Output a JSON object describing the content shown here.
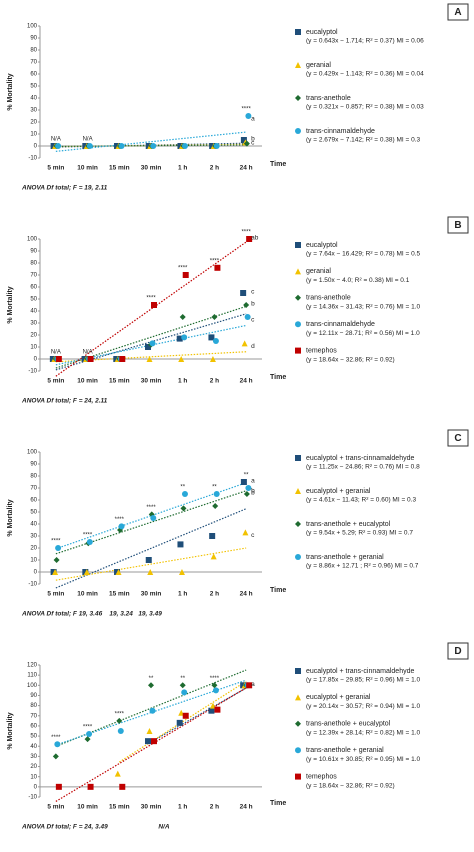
{
  "chart_data": [
    {
      "type": "scatter",
      "panel": "A",
      "ylabel": "% Mortality",
      "xlabel": "Time",
      "footnote": "ANOVA Df total; F = 19, 2.11",
      "categories": [
        "5 min",
        "10 min",
        "15 min",
        "30 min",
        "1 h",
        "2 h",
        "24 h"
      ],
      "ylim": [
        -10,
        100
      ],
      "yticks": [
        -10,
        0,
        10,
        20,
        30,
        40,
        50,
        60,
        70,
        80,
        90,
        100
      ],
      "series": [
        {
          "name": "eucalyptol",
          "equation": "(y = 0.643x − 1.714; R² = 0.37) MI = 0.06",
          "color": "#1f4e79",
          "marker": "square",
          "values": [
            0,
            0,
            0,
            0,
            0,
            0,
            5
          ],
          "point_labels": [
            null,
            null,
            null,
            null,
            null,
            null,
            "b"
          ]
        },
        {
          "name": "geranial",
          "equation": "(y = 0.429x − 1.143; R² = 0.36) MI = 0.04",
          "color": "#f2c200",
          "marker": "triangle",
          "values": [
            0,
            0,
            0,
            0,
            0,
            0,
            3
          ],
          "point_labels": [
            null,
            null,
            null,
            null,
            null,
            null,
            null
          ]
        },
        {
          "name": "trans-anethole",
          "equation": "(y = 0.321x − 0.857; R² = 0.38) MI = 0.03",
          "color": "#1e6b30",
          "marker": "diamond",
          "values": [
            0,
            0,
            0,
            0,
            0,
            0,
            2
          ],
          "point_labels": [
            null,
            null,
            null,
            null,
            null,
            null,
            "c"
          ]
        },
        {
          "name": "trans-cinnamaldehyde",
          "equation": "(y = 2.679x − 7.142; R² = 0.38) MI = 0.3",
          "color": "#29a8d8",
          "marker": "circle",
          "values": [
            0,
            0,
            0,
            0,
            0,
            0,
            25
          ],
          "point_labels": [
            null,
            null,
            null,
            null,
            null,
            null,
            "a"
          ]
        }
      ],
      "annotations": [
        {
          "at": "5 min",
          "text": "N/A"
        },
        {
          "at": "10 min",
          "text": "N/A"
        },
        {
          "at": "24 h",
          "text": "****"
        }
      ]
    },
    {
      "type": "scatter",
      "panel": "B",
      "ylabel": "% Mortality",
      "xlabel": "Time",
      "footnote": "ANOVA Df total; F = 24, 2.11",
      "categories": [
        "5 min",
        "10 min",
        "15 min",
        "30 min",
        "1 h",
        "2 h",
        "24 h"
      ],
      "ylim": [
        -10,
        100
      ],
      "yticks": [
        -10,
        0,
        10,
        20,
        30,
        40,
        50,
        60,
        70,
        80,
        90,
        100
      ],
      "series": [
        {
          "name": "eucalyptol",
          "equation": "(y = 7.64x − 16.429; R² = 0.78) MI = 0.5",
          "color": "#1f4e79",
          "marker": "square",
          "values": [
            0,
            0,
            0,
            10,
            17,
            18,
            55
          ],
          "point_labels": [
            null,
            null,
            null,
            null,
            null,
            null,
            "c"
          ]
        },
        {
          "name": "geranial",
          "equation": "(y = 1.50x − 4.0; R² = 0.38) MI = 0.1",
          "color": "#f2c200",
          "marker": "triangle",
          "values": [
            0,
            0,
            0,
            0,
            0,
            0,
            13
          ],
          "point_labels": [
            null,
            null,
            null,
            null,
            null,
            null,
            "d"
          ]
        },
        {
          "name": "trans-anethole",
          "equation": "(y = 14.36x − 31.43; R² = 0.76) MI = 1.0",
          "color": "#1e6b30",
          "marker": "diamond",
          "values": [
            0,
            0,
            0,
            12,
            35,
            35,
            45
          ],
          "point_labels": [
            null,
            null,
            null,
            null,
            null,
            null,
            "b"
          ]
        },
        {
          "name": "trans-cinnamaldehyde",
          "equation": "(y = 12.11x − 28.71; R² = 0.56) MI = 1.0",
          "color": "#29a8d8",
          "marker": "circle",
          "values": [
            0,
            0,
            0,
            13,
            18,
            15,
            35
          ],
          "point_labels": [
            null,
            null,
            null,
            null,
            null,
            null,
            "c"
          ]
        },
        {
          "name": "temephos",
          "equation": "(y = 18.64x − 32.86; R² = 0.92)",
          "color": "#c00000",
          "marker": "square",
          "values": [
            0,
            0,
            0,
            45,
            70,
            76,
            100
          ],
          "point_labels": [
            null,
            null,
            null,
            null,
            null,
            null,
            "ab"
          ]
        }
      ],
      "annotations": [
        {
          "at": "5 min",
          "text": "N/A"
        },
        {
          "at": "10 min",
          "text": "N/A"
        },
        {
          "at": "30 min",
          "text": "****"
        },
        {
          "at": "1 h",
          "text": "****"
        },
        {
          "at": "2 h",
          "text": "****"
        },
        {
          "at": "24 h",
          "text": "****"
        }
      ]
    },
    {
      "type": "scatter",
      "panel": "C",
      "ylabel": "% Mortality",
      "xlabel": "Time",
      "footnote": "ANOVA Df total; F 19, 3.46    19, 3.24   19, 3.49",
      "categories": [
        "5 min",
        "10 min",
        "15 min",
        "30 min",
        "1 h",
        "2 h",
        "24 h"
      ],
      "ylim": [
        -10,
        100
      ],
      "yticks": [
        -10,
        0,
        10,
        20,
        30,
        40,
        50,
        60,
        70,
        80,
        90,
        100
      ],
      "series": [
        {
          "name": "eucalyptol + trans-cinnamaldehyde",
          "equation": "(y = 11.25x − 24.86; R² = 0.76) MI = 0.8",
          "color": "#1f4e79",
          "marker": "square",
          "values": [
            0,
            0,
            0,
            10,
            23,
            30,
            75
          ],
          "point_labels": [
            null,
            null,
            null,
            null,
            null,
            null,
            "a"
          ]
        },
        {
          "name": "eucalyptol + geranial",
          "equation": "(y = 4.61x − 11.43; R² = 0.60) MI = 0.3",
          "color": "#f2c200",
          "marker": "triangle",
          "values": [
            0,
            0,
            0,
            0,
            0,
            13,
            33
          ],
          "point_labels": [
            null,
            null,
            null,
            null,
            null,
            null,
            "c"
          ]
        },
        {
          "name": "trans-anethole + eucalyptol",
          "equation": "(y = 9.54x + 5.29; R² = 0.93) MI = 0.7",
          "color": "#1e6b30",
          "marker": "diamond",
          "values": [
            10,
            24,
            35,
            48,
            53,
            55,
            65
          ],
          "point_labels": [
            null,
            null,
            null,
            null,
            null,
            null,
            "b"
          ]
        },
        {
          "name": "trans-anethole + geranial",
          "equation": "(y = 8.86x + 12.71 ; R² = 0.96) MI = 0.7",
          "color": "#29a8d8",
          "marker": "circle",
          "values": [
            20,
            25,
            38,
            45,
            65,
            65,
            70
          ],
          "point_labels": [
            null,
            null,
            null,
            null,
            null,
            null,
            "b"
          ]
        }
      ],
      "annotations": [
        {
          "at": "5 min",
          "text": "****"
        },
        {
          "at": "10 min",
          "text": "****"
        },
        {
          "at": "15 min",
          "text": "****"
        },
        {
          "at": "30 min",
          "text": "****"
        },
        {
          "at": "1 h",
          "text": "**"
        },
        {
          "at": "2 h",
          "text": "**"
        },
        {
          "at": "24 h",
          "text": "**"
        }
      ]
    },
    {
      "type": "scatter",
      "panel": "D",
      "ylabel": "% Mortality",
      "xlabel": "Time",
      "footnote": "ANOVA Df total; F = 24, 3.49                            N/A",
      "categories": [
        "5 min",
        "10 min",
        "15 min",
        "30 min",
        "1 h",
        "2 h",
        "24 h"
      ],
      "ylim": [
        -10,
        120
      ],
      "yticks": [
        -10,
        0,
        10,
        20,
        30,
        40,
        50,
        60,
        70,
        80,
        90,
        100,
        110,
        120
      ],
      "series": [
        {
          "name": "eucalyptol + trans-cinnamaldehyde",
          "equation": "(y = 17.85x − 29.85; R² = 0.96) MI = 1.0",
          "color": "#1f4e79",
          "marker": "square",
          "values": [
            null,
            null,
            null,
            45,
            63,
            75,
            100
          ],
          "point_labels": [
            null,
            null,
            null,
            null,
            null,
            null,
            null
          ]
        },
        {
          "name": "eucalyptol + geranial",
          "equation": "(y = 20.14x − 30.57; R² = 0.94) MI = 1.0",
          "color": "#f2c200",
          "marker": "triangle",
          "values": [
            null,
            null,
            13,
            55,
            73,
            80,
            100
          ],
          "point_labels": [
            null,
            null,
            null,
            null,
            null,
            null,
            null
          ]
        },
        {
          "name": "trans-anethole + eucalyptol",
          "equation": "(y = 12.39x + 28.14; R² = 0.82) MI = 1.0",
          "color": "#1e6b30",
          "marker": "diamond",
          "values": [
            30,
            47,
            65,
            100,
            100,
            100,
            100
          ],
          "point_labels": [
            null,
            null,
            null,
            null,
            null,
            null,
            null
          ]
        },
        {
          "name": "trans-anethole + geranial",
          "equation": "(y = 10.61x + 30.85; R² = 0.95) MI = 1.0",
          "color": "#29a8d8",
          "marker": "circle",
          "values": [
            42,
            52,
            55,
            75,
            93,
            95,
            100
          ],
          "point_labels": [
            null,
            null,
            null,
            null,
            null,
            null,
            null
          ]
        },
        {
          "name": "temephos",
          "equation": "(y = 18.64x − 32.86; R² = 0.92)",
          "color": "#c00000",
          "marker": "square",
          "values": [
            0,
            0,
            0,
            45,
            70,
            76,
            100
          ],
          "point_labels": [
            null,
            null,
            null,
            null,
            null,
            null,
            "a"
          ]
        }
      ],
      "annotations": [
        {
          "at": "5 min",
          "text": "****"
        },
        {
          "at": "10 min",
          "text": "****"
        },
        {
          "at": "15 min",
          "text": "****"
        },
        {
          "at": "30 min",
          "text": "**"
        },
        {
          "at": "1 h",
          "text": "**"
        },
        {
          "at": "2 h",
          "text": "****"
        }
      ]
    }
  ]
}
